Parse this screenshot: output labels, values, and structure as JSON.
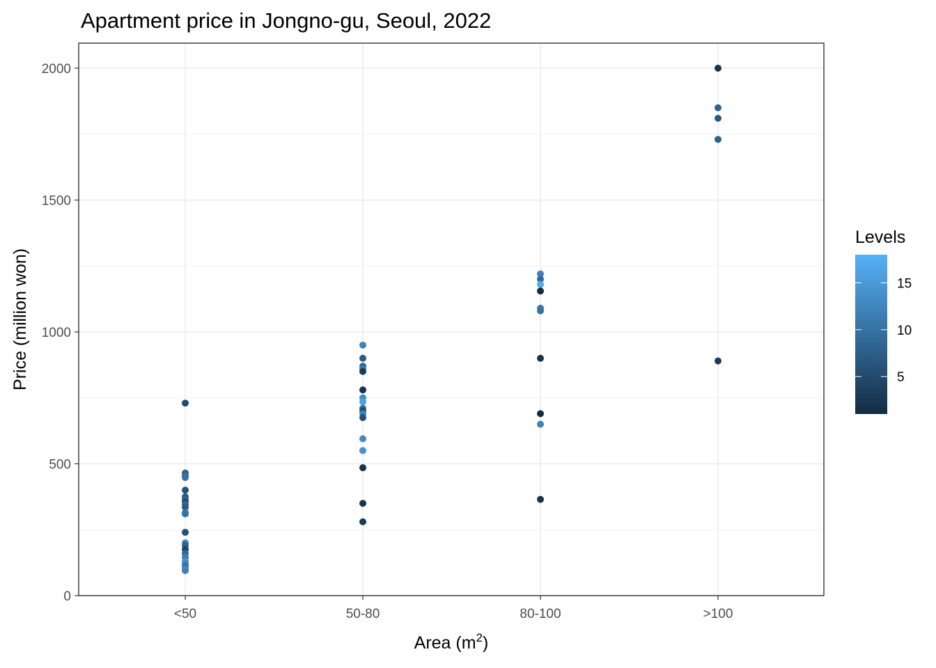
{
  "chart_data": {
    "type": "scatter",
    "title": "Apartment price in Jongno-gu, Seoul, 2022",
    "xlabel": "Area (m",
    "xlabel_superscript": "2",
    "xlabel_suffix": ")",
    "ylabel": "Price (million won)",
    "categories": [
      "<50",
      "50-80",
      "80-100",
      ">100"
    ],
    "ylim": [
      0,
      2000
    ],
    "y_ticks": [
      0,
      500,
      1000,
      1500,
      2000
    ],
    "grid": true,
    "legend": {
      "title": "Levels",
      "placement": "right",
      "type": "colorbar",
      "range": [
        1,
        18
      ],
      "ticks": [
        5,
        10,
        15
      ],
      "color_low": "#132B43",
      "color_high": "#56B1F7"
    },
    "points": [
      {
        "x": "<50",
        "y": 730,
        "level": 5
      },
      {
        "x": "<50",
        "y": 465,
        "level": 8
      },
      {
        "x": "<50",
        "y": 455,
        "level": 9
      },
      {
        "x": "<50",
        "y": 448,
        "level": 10
      },
      {
        "x": "<50",
        "y": 400,
        "level": 6
      },
      {
        "x": "<50",
        "y": 375,
        "level": 7
      },
      {
        "x": "<50",
        "y": 365,
        "level": 8
      },
      {
        "x": "<50",
        "y": 355,
        "level": 5
      },
      {
        "x": "<50",
        "y": 345,
        "level": 9
      },
      {
        "x": "<50",
        "y": 335,
        "level": 7
      },
      {
        "x": "<50",
        "y": 315,
        "level": 11
      },
      {
        "x": "<50",
        "y": 310,
        "level": 10
      },
      {
        "x": "<50",
        "y": 240,
        "level": 6
      },
      {
        "x": "<50",
        "y": 200,
        "level": 12
      },
      {
        "x": "<50",
        "y": 190,
        "level": 8
      },
      {
        "x": "<50",
        "y": 175,
        "level": 4
      },
      {
        "x": "<50",
        "y": 160,
        "level": 9
      },
      {
        "x": "<50",
        "y": 145,
        "level": 11
      },
      {
        "x": "<50",
        "y": 130,
        "level": 14
      },
      {
        "x": "<50",
        "y": 120,
        "level": 12
      },
      {
        "x": "<50",
        "y": 110,
        "level": 10
      },
      {
        "x": "<50",
        "y": 100,
        "level": 13
      },
      {
        "x": "<50",
        "y": 95,
        "level": 12
      },
      {
        "x": "50-80",
        "y": 950,
        "level": 12
      },
      {
        "x": "50-80",
        "y": 900,
        "level": 7
      },
      {
        "x": "50-80",
        "y": 870,
        "level": 8
      },
      {
        "x": "50-80",
        "y": 860,
        "level": 11
      },
      {
        "x": "50-80",
        "y": 850,
        "level": 3
      },
      {
        "x": "50-80",
        "y": 780,
        "level": 2
      },
      {
        "x": "50-80",
        "y": 750,
        "level": 13
      },
      {
        "x": "50-80",
        "y": 735,
        "level": 16
      },
      {
        "x": "50-80",
        "y": 710,
        "level": 9
      },
      {
        "x": "50-80",
        "y": 700,
        "level": 5
      },
      {
        "x": "50-80",
        "y": 690,
        "level": 12
      },
      {
        "x": "50-80",
        "y": 675,
        "level": 6
      },
      {
        "x": "50-80",
        "y": 595,
        "level": 13
      },
      {
        "x": "50-80",
        "y": 550,
        "level": 14
      },
      {
        "x": "50-80",
        "y": 485,
        "level": 2
      },
      {
        "x": "50-80",
        "y": 350,
        "level": 2
      },
      {
        "x": "50-80",
        "y": 280,
        "level": 3
      },
      {
        "x": "80-100",
        "y": 1220,
        "level": 12
      },
      {
        "x": "80-100",
        "y": 1200,
        "level": 9
      },
      {
        "x": "80-100",
        "y": 1180,
        "level": 17
      },
      {
        "x": "80-100",
        "y": 1155,
        "level": 1
      },
      {
        "x": "80-100",
        "y": 1090,
        "level": 11
      },
      {
        "x": "80-100",
        "y": 1080,
        "level": 10
      },
      {
        "x": "80-100",
        "y": 900,
        "level": 2
      },
      {
        "x": "80-100",
        "y": 690,
        "level": 1
      },
      {
        "x": "80-100",
        "y": 650,
        "level": 12
      },
      {
        "x": "80-100",
        "y": 365,
        "level": 2
      },
      {
        "x": ">100",
        "y": 2000,
        "level": 2
      },
      {
        "x": ">100",
        "y": 1850,
        "level": 8
      },
      {
        "x": ">100",
        "y": 1810,
        "level": 7
      },
      {
        "x": ">100",
        "y": 1730,
        "level": 8
      },
      {
        "x": ">100",
        "y": 890,
        "level": 3
      }
    ]
  }
}
